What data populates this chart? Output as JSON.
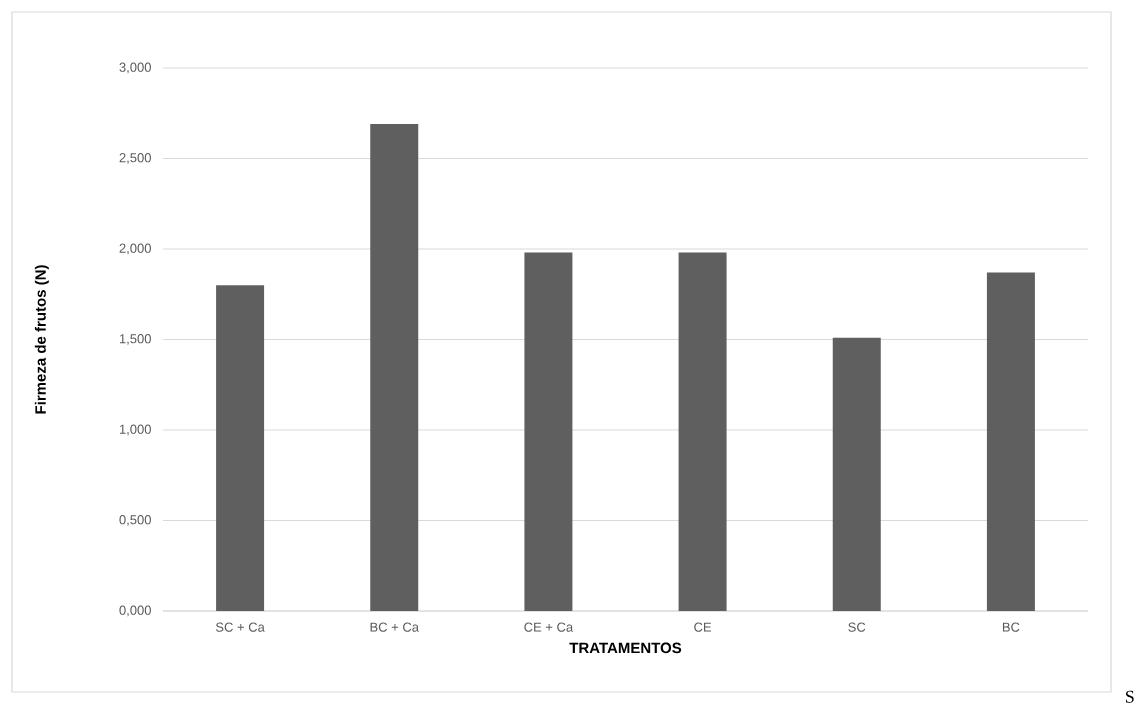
{
  "chart_data": {
    "type": "bar",
    "xlabel": "TRATAMENTOS",
    "ylabel": "Firmeza de frutos (N)",
    "categories": [
      "SC + Ca",
      "BC + Ca",
      "CE + Ca",
      "CE",
      "SC",
      "BC"
    ],
    "values": [
      1.8,
      2.69,
      1.98,
      1.98,
      1.51,
      1.87
    ],
    "color": "#5f5f5f",
    "ylim": [
      0,
      3
    ],
    "yticks": [
      {
        "value": 0,
        "label": "0,000"
      },
      {
        "value": 0.5,
        "label": "0,500"
      },
      {
        "value": 1,
        "label": "1,000"
      },
      {
        "value": 1.5,
        "label": "1,500"
      },
      {
        "value": 2,
        "label": "2,000"
      },
      {
        "value": 2.5,
        "label": "2,500"
      },
      {
        "value": 3,
        "label": "3,000"
      }
    ],
    "grid": "y",
    "annotations": [
      "S"
    ]
  }
}
